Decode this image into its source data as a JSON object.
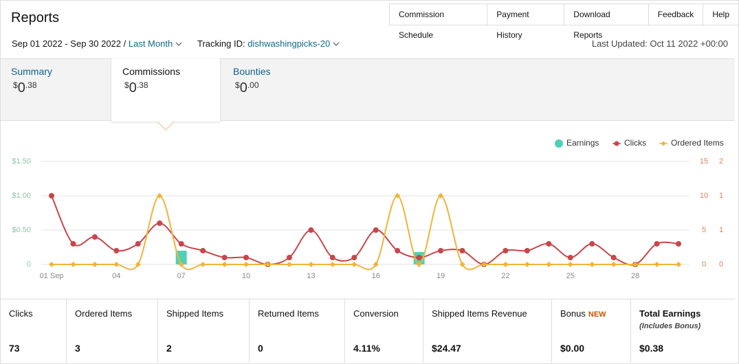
{
  "header": {
    "title": "Reports",
    "nav": [
      "Commission Schedule",
      "Payment History",
      "Download Reports",
      "Feedback",
      "Help"
    ],
    "date_range": "Sep 01 2022 - Sep 30 2022 /",
    "period": "Last Month",
    "tracking_label": "Tracking ID:",
    "tracking_id": "dishwashingpicks-20",
    "last_updated": "Last Updated: Oct 11 2022 +00:00"
  },
  "tabs": [
    {
      "label": "Summary",
      "symbol": "$",
      "whole": "0",
      "fraction": ".38"
    },
    {
      "label": "Commissions",
      "symbol": "$",
      "whole": "0",
      "fraction": ".38"
    },
    {
      "label": "Bounties",
      "symbol": "$",
      "whole": "0",
      "fraction": ".00"
    }
  ],
  "chart_data": {
    "type": "combo",
    "categories": [
      "01 Sep",
      null,
      null,
      "04",
      null,
      null,
      "07",
      null,
      null,
      "10",
      null,
      null,
      "13",
      null,
      null,
      "16",
      null,
      null,
      "19",
      null,
      null,
      "22",
      null,
      null,
      "25",
      null,
      null,
      "28",
      null,
      null
    ],
    "series": [
      {
        "name": "Earnings",
        "type": "bar",
        "color": "#4fd1b5",
        "values": [
          0,
          0,
          0,
          0,
          0,
          0,
          0.2,
          0,
          0,
          0,
          0,
          0,
          0,
          0,
          0,
          0,
          0,
          0.18,
          0,
          0,
          0,
          0,
          0,
          0,
          0,
          0,
          0,
          0,
          0,
          0
        ]
      },
      {
        "name": "Clicks",
        "type": "line",
        "axis": "y2",
        "color": "#c8464a",
        "values": [
          10,
          3,
          4,
          2,
          3,
          6,
          3,
          2,
          1,
          1,
          0,
          1,
          5,
          1,
          1,
          5,
          2,
          1,
          2,
          2,
          0,
          2,
          2,
          3,
          1,
          3,
          1,
          0,
          3,
          3
        ]
      },
      {
        "name": "Ordered Items",
        "type": "line",
        "axis": "y3",
        "color": "#f0b43a",
        "values": [
          0,
          0,
          0,
          0,
          0,
          1,
          0,
          0,
          0,
          0,
          0,
          0,
          0,
          0,
          0,
          0,
          1,
          0,
          1,
          0,
          0,
          0,
          0,
          0,
          0,
          0,
          0,
          0,
          0,
          0
        ]
      }
    ],
    "ylim": [
      0,
      1.5
    ],
    "yticks": [
      0,
      {
        "value": 0.5,
        "label": "$0.50"
      },
      {
        "value": 1,
        "label": "$1.00"
      },
      {
        "value": 1.5,
        "label": "$1.50"
      }
    ],
    "y2lim": [
      0,
      15
    ],
    "y2ticks": [
      0,
      5,
      10,
      15
    ],
    "y3lim": [
      0,
      1.5
    ],
    "y3ticks": [
      0,
      {
        "value": 0.5,
        "label": "1"
      },
      1,
      {
        "value": 1.5,
        "label": "2"
      }
    ],
    "grid": true,
    "legend": "top-right"
  },
  "stats": [
    {
      "label": "Clicks",
      "value": "73"
    },
    {
      "label": "Ordered Items",
      "value": "3"
    },
    {
      "label": "Shipped Items",
      "value": "2"
    },
    {
      "label": "Returned Items",
      "value": "0"
    },
    {
      "label": "Conversion",
      "value": "4.11%"
    },
    {
      "label": "Shipped Items Revenue",
      "value": "$24.47"
    },
    {
      "label": "Bonus",
      "badge": "NEW",
      "value": "$0.00"
    },
    {
      "label": "Total Earnings",
      "note": "(Includes Bonus)",
      "value": "$0.38"
    }
  ]
}
